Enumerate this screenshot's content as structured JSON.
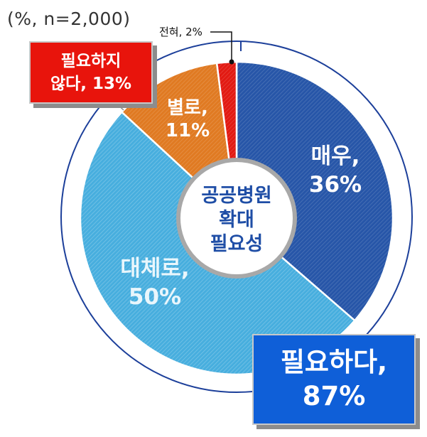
{
  "caption": "(%, n=2,000)",
  "center_title": [
    "공공병원",
    "확대",
    "필요성"
  ],
  "summary": {
    "negative": {
      "line1": "필요하지",
      "line2": "않다, 13%",
      "color": "#e8140c"
    },
    "positive": {
      "line1": "필요하다,",
      "line2": "87%",
      "color": "#0f5fd8"
    }
  },
  "chart_data": {
    "type": "pie",
    "donut": true,
    "slices": [
      {
        "label": "매우",
        "value": 36,
        "display": [
          "매우,",
          "36%"
        ],
        "color": "#2756a8"
      },
      {
        "label": "대체로",
        "value": 50,
        "display": [
          "대체로,",
          "50%"
        ],
        "color": "#47aede"
      },
      {
        "label": "별로",
        "value": 11,
        "display": [
          "별로,",
          "11%"
        ],
        "color": "#e07a22"
      },
      {
        "label": "전혀",
        "value": 2,
        "display": [
          "전혀, 2%"
        ],
        "color": "#e21a12"
      }
    ]
  }
}
